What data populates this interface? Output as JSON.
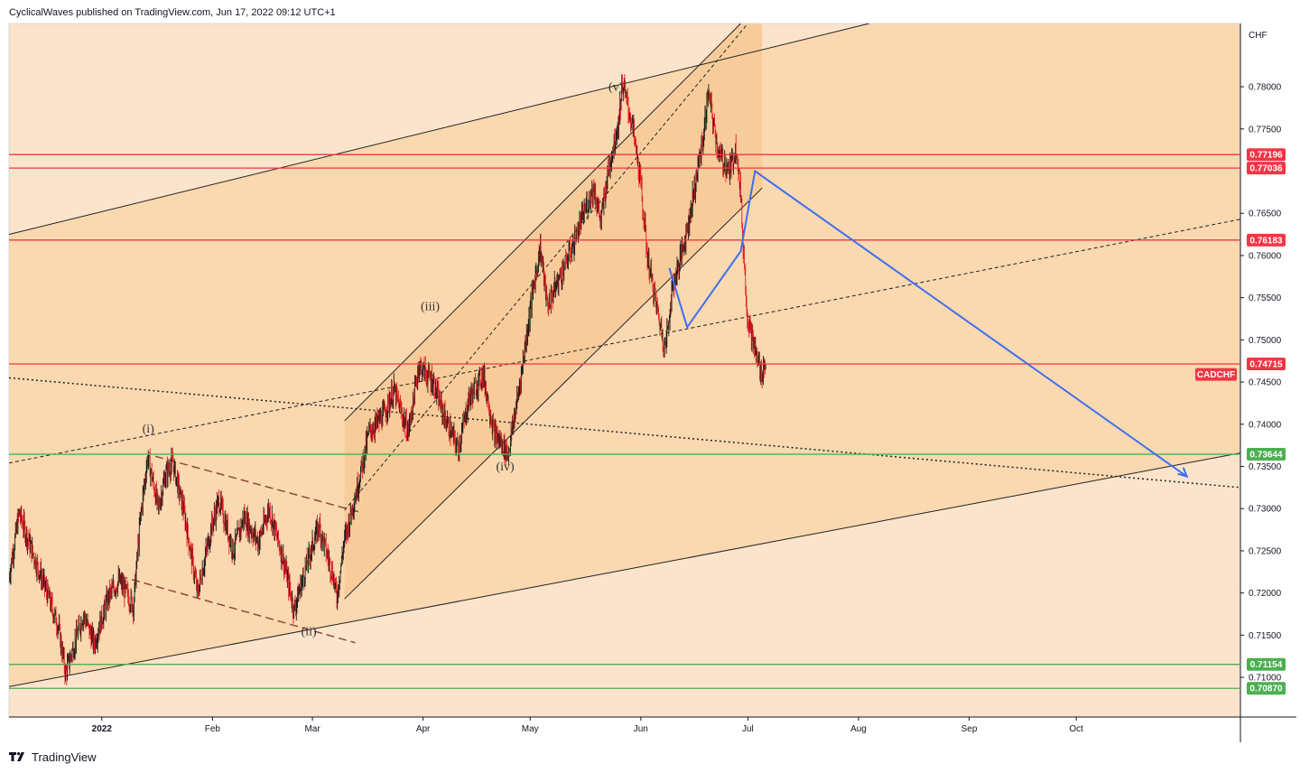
{
  "header": {
    "text": "CyclicalWaves published on TradingView.com, Jun 17, 2022 09:12 UTC+1"
  },
  "footer": {
    "brand": "TradingView",
    "logo_icon": "tradingview-logo-icon"
  },
  "colors": {
    "band_outer": "#fbe4cb",
    "band_inner": "#fad8b0",
    "band_core": "#f8cc9a",
    "level_red": "#f23645",
    "level_green": "#4caf50",
    "projection_blue": "#3d6ff0",
    "candle": "#1a1a1a",
    "candle_red": "#e02020",
    "symbol_tag": "#f23645"
  },
  "chart_data": {
    "type": "candlestick",
    "symbol": "CADCHF",
    "currency_label": "CHF",
    "x_axis": {
      "start": "2021-12-06",
      "end": "2022-11-16",
      "tick_labels": [
        {
          "date": "2022-01-01",
          "label": "2022"
        },
        {
          "date": "2022-02-01",
          "label": "Feb"
        },
        {
          "date": "2022-03-01",
          "label": "Mar"
        },
        {
          "date": "2022-04-01",
          "label": "Apr"
        },
        {
          "date": "2022-05-01",
          "label": "May"
        },
        {
          "date": "2022-06-01",
          "label": "Jun"
        },
        {
          "date": "2022-07-01",
          "label": "Jul"
        },
        {
          "date": "2022-08-01",
          "label": "Aug"
        },
        {
          "date": "2022-09-01",
          "label": "Sep"
        },
        {
          "date": "2022-10-01",
          "label": "Oct"
        }
      ]
    },
    "y_axis": {
      "range": [
        0.7053,
        0.7875
      ],
      "tick_labels": [
        "0.78000",
        "0.77500",
        "0.76500",
        "0.76000",
        "0.75500",
        "0.75000",
        "0.74500",
        "0.74000",
        "0.73500",
        "0.73000",
        "0.72500",
        "0.72000",
        "0.71500",
        "0.71000"
      ]
    },
    "price_path": [
      [
        "2021-12-06",
        0.7215
      ],
      [
        "2021-12-09",
        0.7295
      ],
      [
        "2021-12-13",
        0.7245
      ],
      [
        "2021-12-16",
        0.721
      ],
      [
        "2021-12-20",
        0.716
      ],
      [
        "2021-12-22",
        0.7105
      ],
      [
        "2021-12-27",
        0.7175
      ],
      [
        "2021-12-30",
        0.714
      ],
      [
        "2022-01-03",
        0.7195
      ],
      [
        "2022-01-06",
        0.7215
      ],
      [
        "2022-01-10",
        0.7185
      ],
      [
        "2022-01-12",
        0.729
      ],
      [
        "2022-01-14",
        0.7362
      ],
      [
        "2022-01-17",
        0.73
      ],
      [
        "2022-01-19",
        0.734
      ],
      [
        "2022-01-21",
        0.7355
      ],
      [
        "2022-01-24",
        0.73
      ],
      [
        "2022-01-26",
        0.725
      ],
      [
        "2022-01-28",
        0.72
      ],
      [
        "2022-02-01",
        0.728
      ],
      [
        "2022-02-03",
        0.731
      ],
      [
        "2022-02-07",
        0.725
      ],
      [
        "2022-02-10",
        0.729
      ],
      [
        "2022-02-14",
        0.726
      ],
      [
        "2022-02-17",
        0.73
      ],
      [
        "2022-02-21",
        0.724
      ],
      [
        "2022-02-24",
        0.718
      ],
      [
        "2022-02-28",
        0.724
      ],
      [
        "2022-03-03",
        0.728
      ],
      [
        "2022-03-07",
        0.722
      ],
      [
        "2022-03-08",
        0.7195
      ],
      [
        "2022-03-10",
        0.726
      ],
      [
        "2022-03-14",
        0.733
      ],
      [
        "2022-03-17",
        0.739
      ],
      [
        "2022-03-21",
        0.741
      ],
      [
        "2022-03-24",
        0.744
      ],
      [
        "2022-03-28",
        0.739
      ],
      [
        "2022-03-31",
        0.747
      ],
      [
        "2022-04-04",
        0.745
      ],
      [
        "2022-04-07",
        0.741
      ],
      [
        "2022-04-11",
        0.737
      ],
      [
        "2022-04-14",
        0.743
      ],
      [
        "2022-04-18",
        0.746
      ],
      [
        "2022-04-21",
        0.739
      ],
      [
        "2022-04-25",
        0.7365
      ],
      [
        "2022-04-28",
        0.744
      ],
      [
        "2022-05-02",
        0.756
      ],
      [
        "2022-05-04",
        0.761
      ],
      [
        "2022-05-06",
        0.754
      ],
      [
        "2022-05-10",
        0.758
      ],
      [
        "2022-05-13",
        0.761
      ],
      [
        "2022-05-17",
        0.766
      ],
      [
        "2022-05-19",
        0.768
      ],
      [
        "2022-05-21",
        0.764
      ],
      [
        "2022-05-23",
        0.77
      ],
      [
        "2022-05-26",
        0.776
      ],
      [
        "2022-05-27",
        0.7805
      ],
      [
        "2022-05-30",
        0.775
      ],
      [
        "2022-06-01",
        0.769
      ],
      [
        "2022-06-03",
        0.76
      ],
      [
        "2022-06-06",
        0.753
      ],
      [
        "2022-06-08",
        0.749
      ],
      [
        "2022-06-10",
        0.756
      ],
      [
        "2022-06-13",
        0.761
      ],
      [
        "2022-06-15",
        0.765
      ],
      [
        "2022-06-17",
        0.77
      ],
      [
        "2022-06-19",
        0.775
      ],
      [
        "2022-06-20",
        0.7795
      ],
      [
        "2022-06-23",
        0.772
      ],
      [
        "2022-06-26",
        0.77
      ],
      [
        "2022-06-28",
        0.773
      ],
      [
        "2022-06-29",
        0.768
      ],
      [
        "2022-06-30",
        0.76
      ],
      [
        "2022-07-01",
        0.753
      ],
      [
        "2022-07-03",
        0.749
      ],
      [
        "2022-07-05",
        0.746
      ],
      [
        "2022-07-06",
        0.747
      ]
    ],
    "horizontal_levels": [
      {
        "value": 0.77196,
        "label": "0.77196",
        "kind": "resistance"
      },
      {
        "value": 0.77036,
        "label": "0.77036",
        "kind": "resistance"
      },
      {
        "value": 0.76183,
        "label": "0.76183",
        "kind": "resistance"
      },
      {
        "value": 0.74715,
        "label": "0.74715",
        "kind": "resistance"
      },
      {
        "value": 0.73644,
        "label": "0.73644",
        "kind": "support"
      },
      {
        "value": 0.71154,
        "label": "0.71154",
        "kind": "support"
      },
      {
        "value": 0.7087,
        "label": "0.70870",
        "kind": "support"
      }
    ],
    "current_price_tag": {
      "label": "CADCHF",
      "value": 0.7459
    },
    "wave_labels": [
      {
        "text": "(i)",
        "date": "2022-01-14",
        "value": 0.739
      },
      {
        "text": "(ii)",
        "date": "2022-02-28",
        "value": 0.715
      },
      {
        "text": "(iii)",
        "date": "2022-04-03",
        "value": 0.7535
      },
      {
        "text": "(iv)",
        "date": "2022-04-24",
        "value": 0.7345
      },
      {
        "text": "(v)",
        "date": "2022-05-25",
        "value": 0.7795
      }
    ],
    "projection_path": [
      [
        "2022-06-09",
        0.7585
      ],
      [
        "2022-06-14",
        0.7515
      ],
      [
        "2022-06-29",
        0.7605
      ],
      [
        "2022-07-03",
        0.77
      ],
      [
        "2022-11-01",
        0.7338
      ]
    ],
    "outer_channel": {
      "upper": [
        [
          "2021-12-06",
          0.7625
        ],
        [
          "2022-08-04",
          0.7875
        ]
      ],
      "lower": [
        [
          "2021-12-06",
          0.7089
        ],
        [
          "2022-11-16",
          0.7366
        ]
      ],
      "midline": [
        [
          "2021-12-06",
          0.7354
        ],
        [
          "2022-11-16",
          0.7643
        ]
      ]
    },
    "impulse_channel": {
      "upper": [
        [
          "2022-03-10",
          0.7404
        ],
        [
          "2022-06-29",
          0.7875
        ]
      ],
      "lower": [
        [
          "2022-03-10",
          0.7193
        ],
        [
          "2022-07-05",
          0.768
        ]
      ],
      "midline": [
        [
          "2022-03-10",
          0.7298
        ],
        [
          "2022-07-01",
          0.7875
        ]
      ]
    },
    "wave2_channel": {
      "upper": [
        [
          "2022-01-16",
          0.7362
        ],
        [
          "2022-03-15",
          0.7295
        ]
      ],
      "lower": [
        [
          "2022-01-06",
          0.722
        ],
        [
          "2022-03-13",
          0.7141
        ]
      ]
    },
    "long_dotted_trendline": [
      [
        "2021-12-06",
        0.7455
      ],
      [
        "2022-11-16",
        0.7325
      ]
    ]
  }
}
